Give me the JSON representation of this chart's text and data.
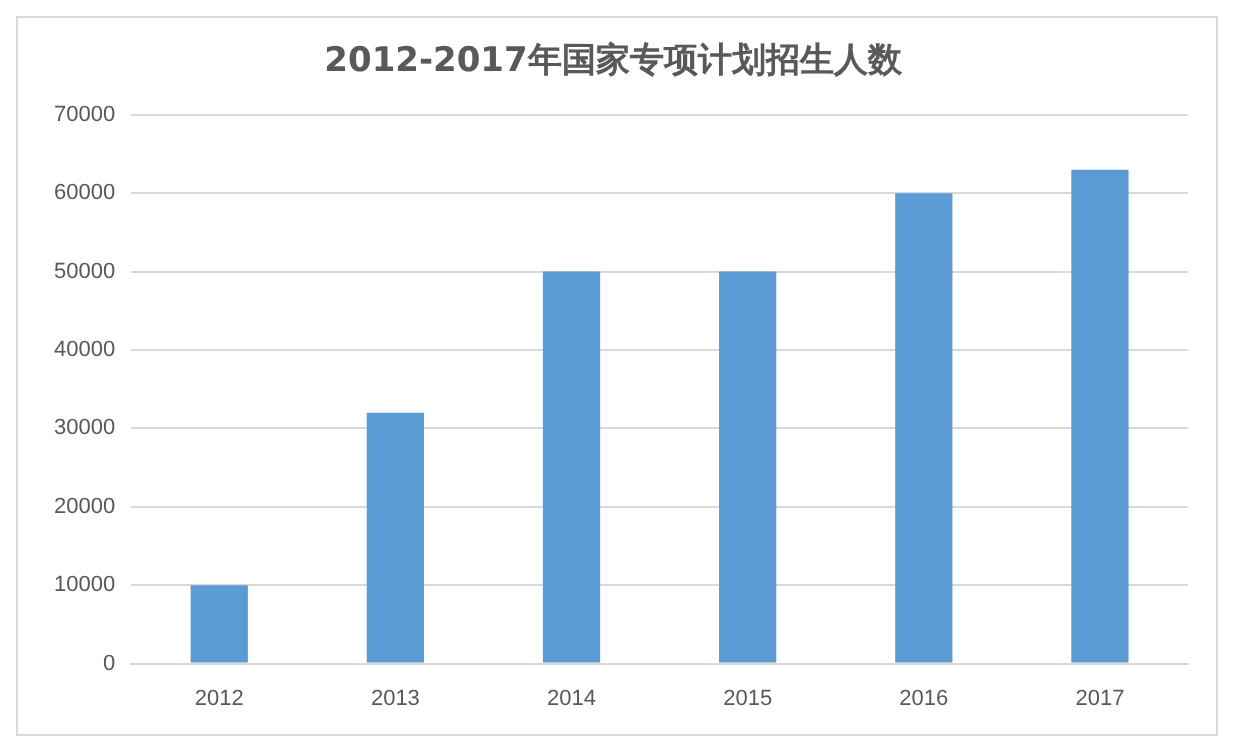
{
  "chart_data": {
    "type": "bar",
    "title": "2012-2017年国家专项计划招生人数",
    "categories": [
      "2012",
      "2013",
      "2014",
      "2015",
      "2016",
      "2017"
    ],
    "values": [
      10000,
      32000,
      50000,
      50000,
      60000,
      63000
    ],
    "color": "#5b9bd5",
    "ylim": [
      0,
      70000
    ],
    "yticks": [
      0,
      10000,
      20000,
      30000,
      40000,
      50000,
      60000,
      70000
    ],
    "grid": "y"
  }
}
